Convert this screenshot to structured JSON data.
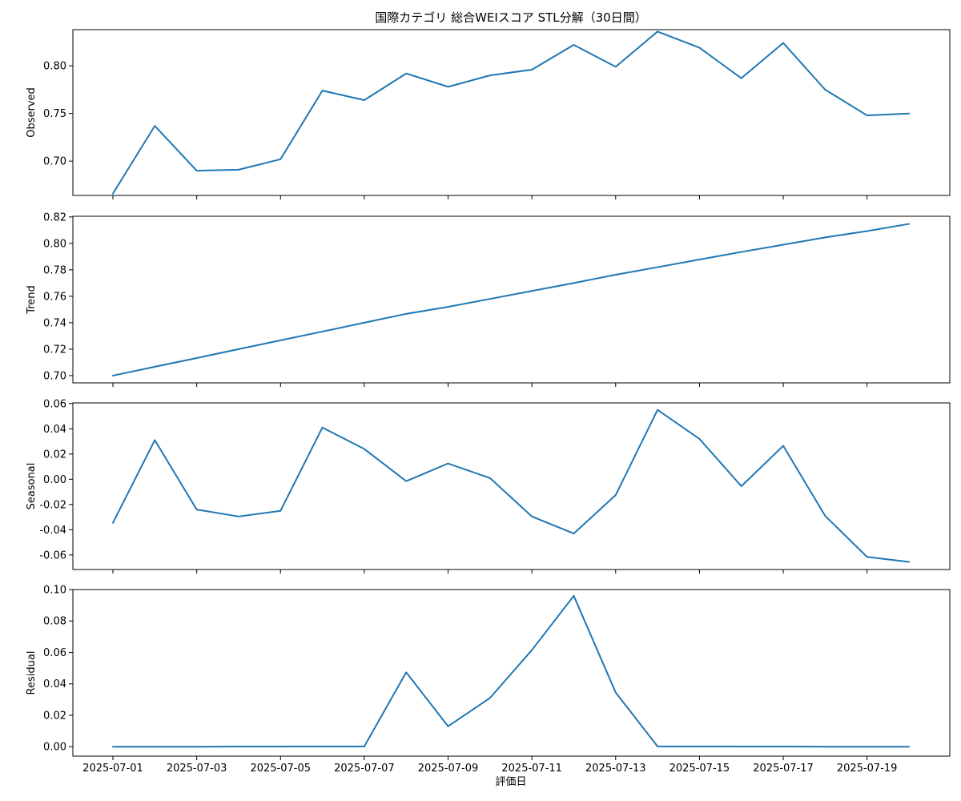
{
  "chart_data": {
    "type": "line",
    "title": "国際カテゴリ 総合WEIスコア STL分解（30日間）",
    "xlabel": "評価日",
    "line_color": "#1f77b4",
    "x_dates": [
      "2025-07-01",
      "2025-07-02",
      "2025-07-03",
      "2025-07-04",
      "2025-07-05",
      "2025-07-06",
      "2025-07-07",
      "2025-07-08",
      "2025-07-09",
      "2025-07-10",
      "2025-07-11",
      "2025-07-12",
      "2025-07-13",
      "2025-07-14",
      "2025-07-15",
      "2025-07-16",
      "2025-07-17",
      "2025-07-18",
      "2025-07-19",
      "2025-07-20"
    ],
    "x_tick_labels": [
      "2025-07-01",
      "2025-07-03",
      "2025-07-05",
      "2025-07-07",
      "2025-07-09",
      "2025-07-11",
      "2025-07-13",
      "2025-07-15",
      "2025-07-17",
      "2025-07-19"
    ],
    "panels": [
      {
        "ylabel": "Observed",
        "ylim": [
          0.664,
          0.838
        ],
        "y_ticks": [
          0.7,
          0.75,
          0.8
        ],
        "y_tick_labels": [
          "0.70",
          "0.75",
          "0.80"
        ],
        "values": [
          0.666,
          0.737,
          0.69,
          0.691,
          0.702,
          0.774,
          0.764,
          0.792,
          0.778,
          0.79,
          0.796,
          0.822,
          0.799,
          0.836,
          0.819,
          0.787,
          0.824,
          0.775,
          0.748,
          0.75
        ]
      },
      {
        "ylabel": "Trend",
        "ylim": [
          0.6945,
          0.8205
        ],
        "y_ticks": [
          0.7,
          0.72,
          0.74,
          0.76,
          0.78,
          0.8,
          0.82
        ],
        "y_tick_labels": [
          "0.70",
          "0.72",
          "0.74",
          "0.76",
          "0.78",
          "0.80",
          "0.82"
        ],
        "values": [
          0.7,
          0.7067,
          0.7133,
          0.72,
          0.7267,
          0.7333,
          0.74,
          0.7467,
          0.752,
          0.758,
          0.764,
          0.77,
          0.7763,
          0.782,
          0.7878,
          0.7935,
          0.799,
          0.8045,
          0.8093,
          0.8147
        ]
      },
      {
        "ylabel": "Seasonal",
        "ylim": [
          -0.0715,
          0.0605
        ],
        "y_ticks": [
          -0.06,
          -0.04,
          -0.02,
          0.0,
          0.02,
          0.04,
          0.06
        ],
        "y_tick_labels": [
          "-0.06",
          "-0.04",
          "-0.02",
          "0.00",
          "0.02",
          "0.04",
          "0.06"
        ],
        "values": [
          -0.0345,
          0.031,
          -0.024,
          -0.0295,
          -0.025,
          0.041,
          0.024,
          -0.0015,
          0.0125,
          0.001,
          -0.0295,
          -0.043,
          -0.0125,
          0.055,
          0.032,
          -0.0055,
          0.0265,
          -0.029,
          -0.0615,
          -0.0655
        ]
      },
      {
        "ylabel": "Residual",
        "ylim": [
          -0.006,
          0.1
        ],
        "y_ticks": [
          0.0,
          0.02,
          0.04,
          0.06,
          0.08,
          0.1
        ],
        "y_tick_labels": [
          "0.00",
          "0.02",
          "0.04",
          "0.06",
          "0.08",
          "0.10"
        ],
        "values": [
          0.0,
          0.0,
          0.0,
          0.0001,
          0.0001,
          0.0002,
          0.0002,
          0.0473,
          0.013,
          0.031,
          0.0615,
          0.096,
          0.0345,
          0.0002,
          0.0002,
          0.0001,
          0.0001,
          0.0,
          0.0,
          0.0
        ]
      }
    ]
  }
}
